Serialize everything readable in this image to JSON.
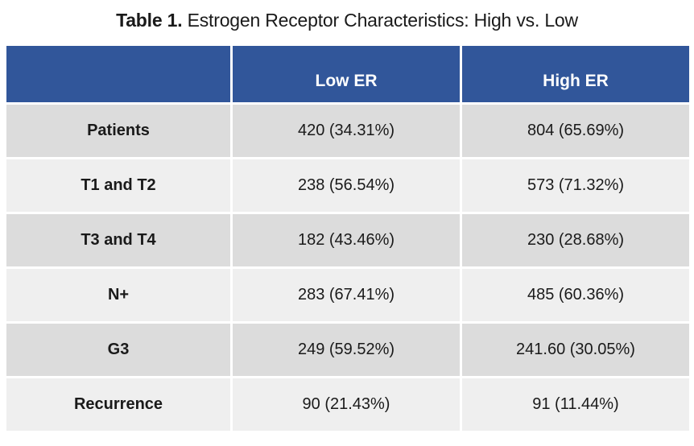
{
  "caption": {
    "prefix": "Table 1.",
    "text": " Estrogen Receptor Characteristics: High vs. Low"
  },
  "table": {
    "columns": [
      "",
      "Low ER",
      "High ER"
    ],
    "rows": [
      {
        "label": "Patients",
        "low": "420 (34.31%)",
        "high": "804 (65.69%)"
      },
      {
        "label": "T1 and T2",
        "low": "238 (56.54%)",
        "high": "573 (71.32%)"
      },
      {
        "label": "T3 and T4",
        "low": "182 (43.46%)",
        "high": "230 (28.68%)"
      },
      {
        "label": "N+",
        "low": "283 (67.41%)",
        "high": "485 (60.36%)"
      },
      {
        "label": "G3",
        "low": "249 (59.52%)",
        "high": "241.60 (30.05%)"
      },
      {
        "label": "Recurrence",
        "low": "90 (21.43%)",
        "high": "91 (11.44%)"
      }
    ],
    "colors": {
      "header_bg": "#31569A",
      "header_text": "#FFFFFF",
      "row_dark": "#DCDCDC",
      "row_light": "#EFEFEF",
      "text": "#1A1A1A"
    }
  },
  "chart_data": {
    "type": "table",
    "title": "Table 1. Estrogen Receptor Characteristics: High vs. Low",
    "columns": [
      "",
      "Low ER",
      "High ER"
    ],
    "rows": [
      [
        "Patients",
        "420 (34.31%)",
        "804 (65.69%)"
      ],
      [
        "T1 and T2",
        "238 (56.54%)",
        "573 (71.32%)"
      ],
      [
        "T3 and T4",
        "182 (43.46%)",
        "230 (28.68%)"
      ],
      [
        "N+",
        "283 (67.41%)",
        "485 (60.36%)"
      ],
      [
        "G3",
        "249 (59.52%)",
        "241.60 (30.05%)"
      ],
      [
        "Recurrence",
        "90 (21.43%)",
        "91 (11.44%)"
      ]
    ]
  }
}
